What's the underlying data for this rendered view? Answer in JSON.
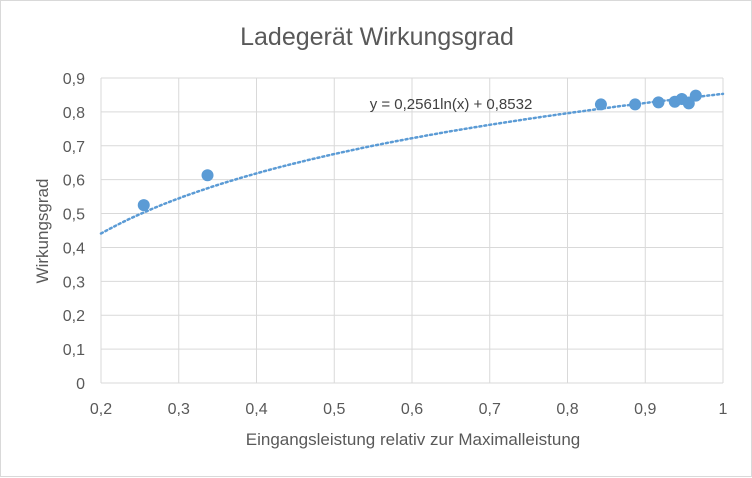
{
  "chart_data": {
    "type": "scatter",
    "title": "Ladegerät Wirkungsgrad",
    "xlabel": "Eingangsleistung relativ zur Maximalleistung",
    "ylabel": "Wirkungsgrad",
    "xlim": [
      0.2,
      1.0
    ],
    "ylim": [
      0,
      0.9
    ],
    "x_ticks": [
      "0,2",
      "0,3",
      "0,4",
      "0,5",
      "0,6",
      "0,7",
      "0,8",
      "0,9",
      "1"
    ],
    "y_ticks": [
      "0",
      "0,1",
      "0,2",
      "0,3",
      "0,4",
      "0,5",
      "0,6",
      "0,7",
      "0,8",
      "0,9"
    ],
    "grid": true,
    "legend": "none",
    "marker_color": "#5b9bd5",
    "trendline_color": "#5b9bd5",
    "series": [
      {
        "x": [
          0.255,
          0.337,
          0.843,
          0.887,
          0.917,
          0.938,
          0.947,
          0.956,
          0.965
        ],
        "y": [
          0.525,
          0.613,
          0.822,
          0.822,
          0.828,
          0.83,
          0.838,
          0.825,
          0.848
        ]
      }
    ],
    "trendline": {
      "type": "logarithmic",
      "a": 0.2561,
      "b": 0.8532,
      "equation": "y = 0,2561ln(x) + 0,8532"
    }
  }
}
